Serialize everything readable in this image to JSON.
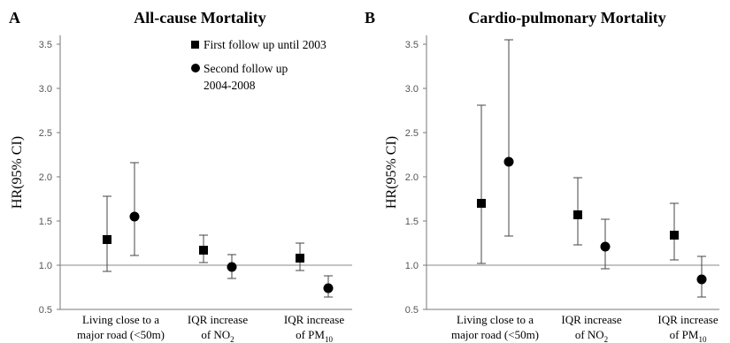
{
  "panels": [
    {
      "letter": "A",
      "title": "All-cause Mortality"
    },
    {
      "letter": "B",
      "title": "Cardio-pulmonary Mortality"
    }
  ],
  "chart_data": [
    {
      "type": "scatter",
      "title": "All-cause Mortality",
      "ylabel": "HR(95% CI)",
      "xlabel": "",
      "ylim": [
        0.5,
        3.6
      ],
      "yticks": [
        "0.5",
        "1.0",
        "1.5",
        "2.0",
        "2.5",
        "3.0",
        "3.5"
      ],
      "reference_line": 1.0,
      "grid": false,
      "legend_position": "top-right",
      "categories": [
        {
          "line1": "Living close to a",
          "line2": "major road (<50m)",
          "sub": ""
        },
        {
          "line1": "IQR increase",
          "line2": "of NO",
          "sub": "2"
        },
        {
          "line1": "IQR increase",
          "line2": "of PM",
          "sub": "10"
        }
      ],
      "series": [
        {
          "name": "First follow up until 2003",
          "marker": "square",
          "values": [
            1.29,
            1.17,
            1.08
          ],
          "lower": [
            0.93,
            1.03,
            0.94
          ],
          "upper": [
            1.78,
            1.34,
            1.25
          ]
        },
        {
          "name": "Second follow up 2004-2008",
          "name_lines": [
            "Second follow up",
            "2004-2008"
          ],
          "marker": "circle",
          "values": [
            1.55,
            0.98,
            0.74
          ],
          "lower": [
            1.11,
            0.85,
            0.64
          ],
          "upper": [
            2.16,
            1.12,
            0.88
          ]
        }
      ]
    },
    {
      "type": "scatter",
      "title": "Cardio-pulmonary Mortality",
      "ylabel": "HR(95% CI)",
      "xlabel": "",
      "ylim": [
        0.5,
        3.6
      ],
      "yticks": [
        "0.5",
        "1.0",
        "1.5",
        "2.0",
        "2.5",
        "3.0",
        "3.5"
      ],
      "reference_line": 1.0,
      "grid": false,
      "categories": [
        {
          "line1": "Living close to a",
          "line2": "major road (<50m)",
          "sub": ""
        },
        {
          "line1": "IQR increase",
          "line2": "of NO",
          "sub": "2"
        },
        {
          "line1": "IQR increase",
          "line2": "of PM",
          "sub": "10"
        }
      ],
      "series": [
        {
          "name": "First follow up until 2003",
          "marker": "square",
          "values": [
            1.7,
            1.57,
            1.34
          ],
          "lower": [
            1.02,
            1.23,
            1.06
          ],
          "upper": [
            2.81,
            1.99,
            1.7
          ]
        },
        {
          "name": "Second follow up 2004-2008",
          "marker": "circle",
          "values": [
            2.17,
            1.21,
            0.84
          ],
          "lower": [
            1.33,
            0.96,
            0.64
          ],
          "upper": [
            3.55,
            1.52,
            1.1
          ]
        }
      ]
    }
  ]
}
